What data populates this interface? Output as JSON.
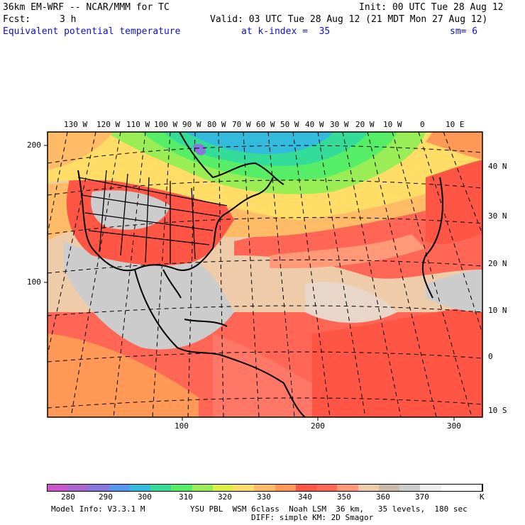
{
  "header": {
    "model_title": "36km EM-WRF -- NCAR/MMM for TC",
    "init": "Init: 00 UTC Tue 28 Aug 12",
    "fcst_label": "Fcst:",
    "fcst_value": "3 h",
    "valid": "Valid: 03 UTC Tue 28 Aug 12 (21 MDT Mon 27 Aug 12)",
    "field_name": "Equivalent potential temperature",
    "level": "at k-index =  35",
    "smoothing": "sm= 6"
  },
  "map": {
    "lon_labels": [
      "130 W",
      "120 W",
      "110 W",
      "100 W",
      "90 W",
      "80 W",
      "70 W",
      "60 W",
      "50 W",
      "40 W",
      "30 W",
      "20 W",
      "10 W",
      "0",
      "10 E"
    ],
    "lat_labels": [
      "40 N",
      "30 N",
      "20 N",
      "10 N",
      "0",
      "10 S"
    ],
    "grid_y_labels": [
      "200",
      "100"
    ],
    "grid_x_labels": [
      "100",
      "200",
      "300"
    ]
  },
  "colorbar": {
    "labels": [
      "280",
      "290",
      "300",
      "310",
      "320",
      "330",
      "340",
      "350",
      "360",
      "370"
    ],
    "unit": "K",
    "colors": [
      "#cc55cc",
      "#aa66cc",
      "#8877dd",
      "#5599ee",
      "#33bbdd",
      "#33dd99",
      "#55ee66",
      "#99ee55",
      "#ddee44",
      "#ffdd66",
      "#ffbb66",
      "#ff9955",
      "#ff5544",
      "#ff6655",
      "#ff9977",
      "#eeccaa",
      "#ccbbaa",
      "#cccccc",
      "#eeeeee",
      "#ffffff",
      "#ffffff"
    ]
  },
  "footer": {
    "model_info": "Model Info: V3.3.1 M",
    "physics": "YSU PBL  WSM 6class  Noah LSM  36 km,   35 levels,  180 sec",
    "diffusion": "DIFF: simple KM: 2D Smagor"
  }
}
